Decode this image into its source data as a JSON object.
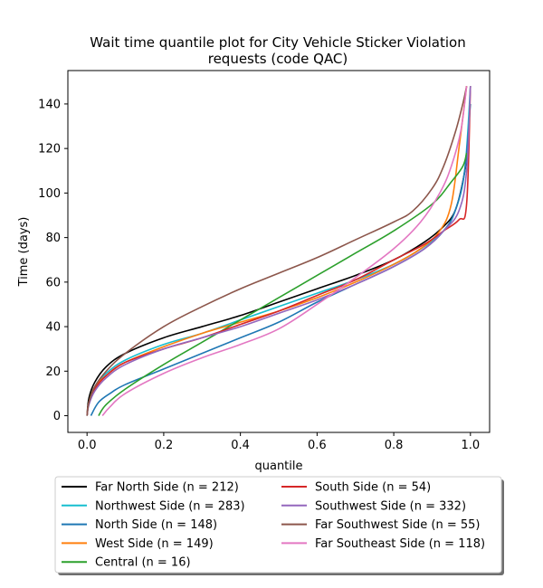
{
  "chart_data": {
    "type": "line",
    "title_lines": [
      "Wait time quantile plot for City Vehicle Sticker Violation",
      "requests (code QAC)"
    ],
    "xlabel": "quantile",
    "ylabel": "Time (days)",
    "xlim": [
      -0.05,
      1.05
    ],
    "ylim": [
      -7.5,
      155
    ],
    "xticks": [
      0.0,
      0.2,
      0.4,
      0.6,
      0.8,
      1.0
    ],
    "xtick_labels": [
      "0.0",
      "0.2",
      "0.4",
      "0.6",
      "0.8",
      "1.0"
    ],
    "yticks": [
      0,
      20,
      40,
      60,
      80,
      100,
      120,
      140
    ],
    "ytick_labels": [
      "0",
      "20",
      "40",
      "60",
      "80",
      "100",
      "120",
      "140"
    ],
    "grid": false,
    "legend_position": "below plot, two columns",
    "series": [
      {
        "name": "Far North Side (n = 212)",
        "color": "#000000",
        "points": [
          [
            0.0,
            0
          ],
          [
            0.005,
            8
          ],
          [
            0.02,
            15
          ],
          [
            0.05,
            22
          ],
          [
            0.1,
            28
          ],
          [
            0.2,
            35
          ],
          [
            0.3,
            40
          ],
          [
            0.4,
            45
          ],
          [
            0.5,
            51
          ],
          [
            0.6,
            57
          ],
          [
            0.7,
            63
          ],
          [
            0.8,
            70
          ],
          [
            0.88,
            78
          ],
          [
            0.93,
            85
          ],
          [
            0.96,
            92
          ],
          [
            0.98,
            105
          ],
          [
            0.995,
            120
          ]
        ]
      },
      {
        "name": "Northwest Side (n = 283)",
        "color": "#17becf",
        "points": [
          [
            0.0,
            0
          ],
          [
            0.005,
            6
          ],
          [
            0.02,
            13
          ],
          [
            0.05,
            19
          ],
          [
            0.1,
            25
          ],
          [
            0.2,
            32
          ],
          [
            0.3,
            37
          ],
          [
            0.4,
            43
          ],
          [
            0.5,
            49
          ],
          [
            0.6,
            55
          ],
          [
            0.7,
            61
          ],
          [
            0.8,
            68
          ],
          [
            0.88,
            76
          ],
          [
            0.93,
            83
          ],
          [
            0.96,
            92
          ],
          [
            0.985,
            110
          ],
          [
            1.0,
            148
          ]
        ]
      },
      {
        "name": "North Side (n = 148)",
        "color": "#1f77b4",
        "points": [
          [
            0.01,
            0
          ],
          [
            0.03,
            6
          ],
          [
            0.06,
            10
          ],
          [
            0.1,
            14
          ],
          [
            0.2,
            21
          ],
          [
            0.3,
            28
          ],
          [
            0.4,
            35
          ],
          [
            0.5,
            42
          ],
          [
            0.6,
            51
          ],
          [
            0.7,
            59
          ],
          [
            0.8,
            67
          ],
          [
            0.88,
            75
          ],
          [
            0.93,
            83
          ],
          [
            0.96,
            92
          ],
          [
            0.985,
            110
          ],
          [
            1.0,
            140
          ]
        ]
      },
      {
        "name": "West Side (n = 149)",
        "color": "#ff7f0e",
        "points": [
          [
            0.0,
            0
          ],
          [
            0.005,
            6
          ],
          [
            0.02,
            13
          ],
          [
            0.05,
            18
          ],
          [
            0.1,
            24
          ],
          [
            0.2,
            31
          ],
          [
            0.3,
            37
          ],
          [
            0.4,
            42
          ],
          [
            0.5,
            47
          ],
          [
            0.6,
            53
          ],
          [
            0.7,
            60
          ],
          [
            0.8,
            68
          ],
          [
            0.87,
            75
          ],
          [
            0.92,
            83
          ],
          [
            0.95,
            95
          ],
          [
            0.97,
            120
          ],
          [
            0.99,
            148
          ]
        ]
      },
      {
        "name": "Central (n = 16)",
        "color": "#2ca02c",
        "points": [
          [
            0.03,
            0
          ],
          [
            0.05,
            5
          ],
          [
            0.1,
            12
          ],
          [
            0.2,
            23
          ],
          [
            0.3,
            33
          ],
          [
            0.4,
            43
          ],
          [
            0.5,
            53
          ],
          [
            0.6,
            63
          ],
          [
            0.7,
            73
          ],
          [
            0.8,
            83
          ],
          [
            0.9,
            95
          ],
          [
            0.95,
            105
          ],
          [
            0.98,
            112
          ],
          [
            0.99,
            118
          ]
        ]
      },
      {
        "name": "South Side (n = 54)",
        "color": "#d62728",
        "points": [
          [
            0.0,
            0
          ],
          [
            0.005,
            6
          ],
          [
            0.02,
            12
          ],
          [
            0.05,
            18
          ],
          [
            0.1,
            24
          ],
          [
            0.2,
            30
          ],
          [
            0.3,
            35
          ],
          [
            0.4,
            41
          ],
          [
            0.5,
            47
          ],
          [
            0.6,
            54
          ],
          [
            0.7,
            61
          ],
          [
            0.8,
            70
          ],
          [
            0.88,
            77
          ],
          [
            0.93,
            83
          ],
          [
            0.97,
            88
          ],
          [
            0.99,
            95
          ],
          [
            1.0,
            148
          ]
        ]
      },
      {
        "name": "Southwest Side (n = 332)",
        "color": "#9467bd",
        "points": [
          [
            0.0,
            0
          ],
          [
            0.005,
            5
          ],
          [
            0.02,
            11
          ],
          [
            0.05,
            17
          ],
          [
            0.1,
            23
          ],
          [
            0.2,
            30
          ],
          [
            0.3,
            35
          ],
          [
            0.4,
            40
          ],
          [
            0.5,
            46
          ],
          [
            0.6,
            52
          ],
          [
            0.7,
            59
          ],
          [
            0.8,
            67
          ],
          [
            0.88,
            75
          ],
          [
            0.93,
            83
          ],
          [
            0.97,
            92
          ],
          [
            0.99,
            110
          ],
          [
            1.0,
            148
          ]
        ]
      },
      {
        "name": "Far Southwest Side (n = 55)",
        "color": "#8c564b",
        "points": [
          [
            0.0,
            0
          ],
          [
            0.005,
            6
          ],
          [
            0.02,
            13
          ],
          [
            0.05,
            20
          ],
          [
            0.1,
            28
          ],
          [
            0.2,
            40
          ],
          [
            0.3,
            49
          ],
          [
            0.4,
            57
          ],
          [
            0.5,
            64
          ],
          [
            0.6,
            71
          ],
          [
            0.7,
            79
          ],
          [
            0.8,
            87
          ],
          [
            0.85,
            92
          ],
          [
            0.9,
            102
          ],
          [
            0.93,
            112
          ],
          [
            0.96,
            127
          ],
          [
            0.98,
            140
          ],
          [
            0.99,
            148
          ]
        ]
      },
      {
        "name": "Far Southeast Side (n = 118)",
        "color": "#e377c2",
        "points": [
          [
            0.04,
            0
          ],
          [
            0.06,
            4
          ],
          [
            0.1,
            10
          ],
          [
            0.2,
            19
          ],
          [
            0.3,
            26
          ],
          [
            0.4,
            32
          ],
          [
            0.5,
            39
          ],
          [
            0.6,
            50
          ],
          [
            0.7,
            62
          ],
          [
            0.8,
            75
          ],
          [
            0.87,
            87
          ],
          [
            0.92,
            100
          ],
          [
            0.95,
            112
          ],
          [
            0.975,
            128
          ],
          [
            0.99,
            148
          ]
        ]
      }
    ]
  }
}
